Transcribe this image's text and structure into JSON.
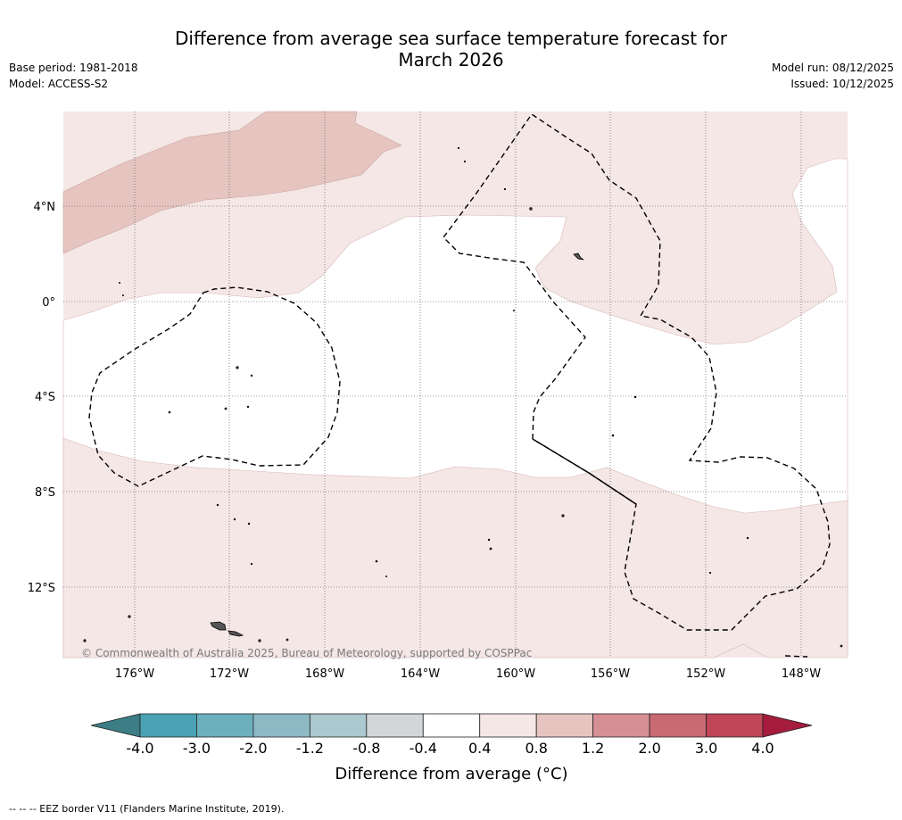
{
  "title_line1": "Difference from average sea surface temperature forecast for",
  "title_line2": "March 2026",
  "base_period": "Base period: 1981-2018",
  "model": "Model: ACCESS-S2",
  "model_run": "Model run: 08/12/2025",
  "issued": "Issued: 10/12/2025",
  "copyright": "© Commonwealth of Australia 2025, Bureau of Meteorology, supported by COSPPac",
  "footnote": "-- -- -- EEZ border V11 (Flanders Marine Institute, 2019).",
  "map": {
    "lat_labels": [
      "4°N",
      "0°",
      "4°S",
      "8°S",
      "12°S"
    ],
    "lon_labels": [
      "176°W",
      "172°W",
      "168°W",
      "164°W",
      "160°W",
      "156°W",
      "152°W",
      "148°W"
    ],
    "lat_values": [
      4,
      0,
      -4,
      -8,
      -12
    ],
    "lon_values": [
      -176,
      -172,
      -168,
      -164,
      -160,
      -156,
      -152,
      -148
    ],
    "lon_range": [
      -179,
      -146
    ],
    "lat_range": [
      -15,
      8
    ]
  },
  "colorbar": {
    "title": "Difference from average (°C)",
    "tick_labels": [
      "-4.0",
      "-3.0",
      "-2.0",
      "-1.2",
      "-0.8",
      "-0.4",
      "0.4",
      "0.8",
      "1.2",
      "2.0",
      "3.0",
      "4.0"
    ],
    "colors": [
      "#4aa3b4",
      "#6db0bd",
      "#8db9c5",
      "#abc9ce",
      "#d3d6d9",
      "#ffffff",
      "#f4e7e6",
      "#e6c5c0",
      "#d69095",
      "#c96a73",
      "#be4657"
    ],
    "extend_low_color": "#3c7d86",
    "extend_high_color": "#a51c3d"
  },
  "colors": {
    "shade_04_08": "#f4e7e6",
    "shade_08_12": "#e6c5c0"
  }
}
